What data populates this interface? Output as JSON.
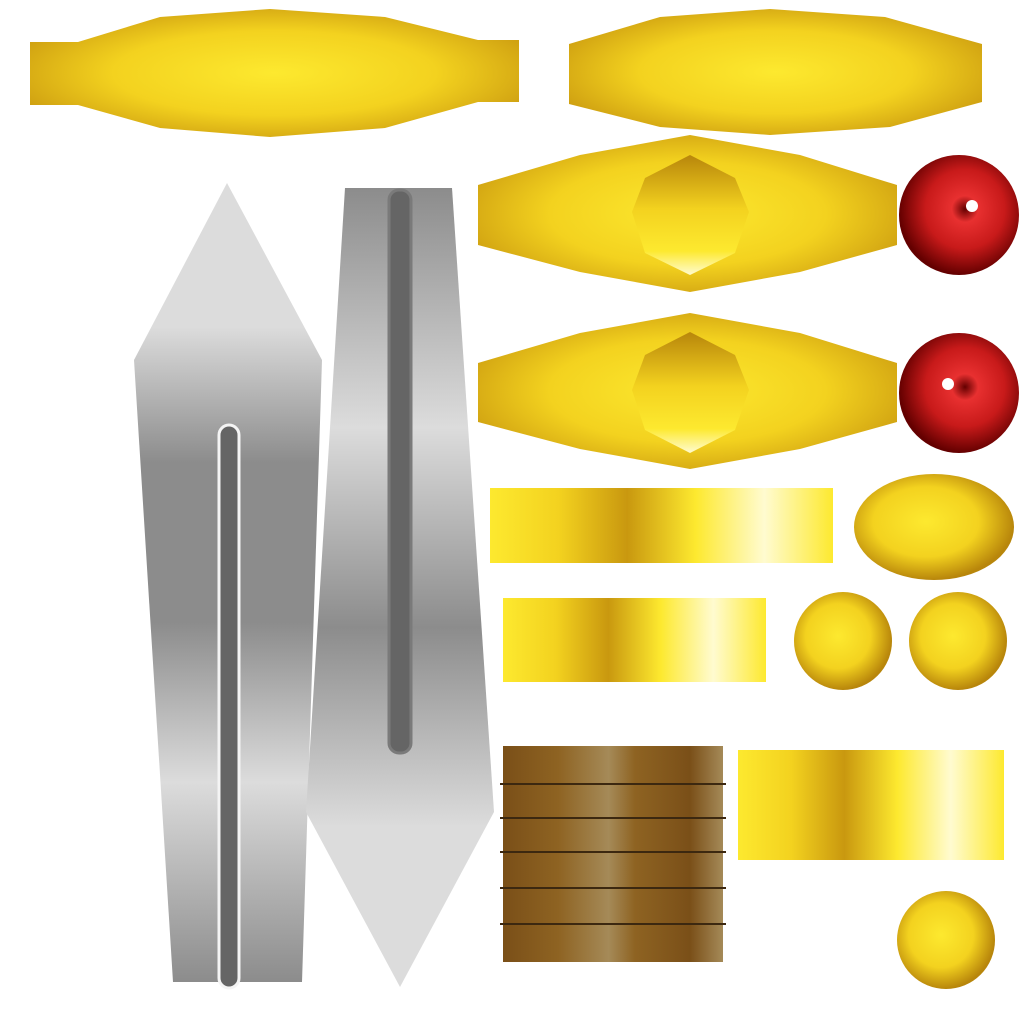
{
  "colors": {
    "gold_light": "#fde92f",
    "gold_mid": "#f3d21f",
    "gold_dark": "#c9980f",
    "gold_shadow": "#b8860b",
    "gold_highlight": "#fffbd0",
    "steel_light": "#dcdcdc",
    "steel_mid": "#a9a9a9",
    "steel_dark": "#8c8c8c",
    "fuller_dark": "#656565",
    "leather_dark": "#7a4f18",
    "leather_mid": "#8e6322",
    "leather_light": "#a58a58",
    "leather_stripe": "#3c2810",
    "ruby_dark": "#640000",
    "ruby_mid": "#c81a1a",
    "ruby_light": "#e83030",
    "background": "#ffffff"
  },
  "parts": [
    {
      "name": "crossguard-strip-left",
      "material": "gold"
    },
    {
      "name": "crossguard-strip-right",
      "material": "gold"
    },
    {
      "name": "blade-left",
      "material": "steel"
    },
    {
      "name": "blade-right",
      "material": "steel"
    },
    {
      "name": "guard-with-gem-socket-top",
      "material": "gold"
    },
    {
      "name": "guard-with-gem-socket-bottom",
      "material": "gold"
    },
    {
      "name": "ruby-gem-top",
      "material": "ruby"
    },
    {
      "name": "ruby-gem-bottom",
      "material": "ruby"
    },
    {
      "name": "gold-band-wide",
      "material": "gold"
    },
    {
      "name": "gold-band-short",
      "material": "gold"
    },
    {
      "name": "gold-band-lower",
      "material": "gold"
    },
    {
      "name": "pommel-ellipse",
      "material": "gold"
    },
    {
      "name": "gold-sphere-left",
      "material": "gold"
    },
    {
      "name": "gold-sphere-right",
      "material": "gold"
    },
    {
      "name": "gold-sphere-bottom",
      "material": "gold"
    },
    {
      "name": "leather-grip-wrap",
      "material": "leather"
    }
  ]
}
